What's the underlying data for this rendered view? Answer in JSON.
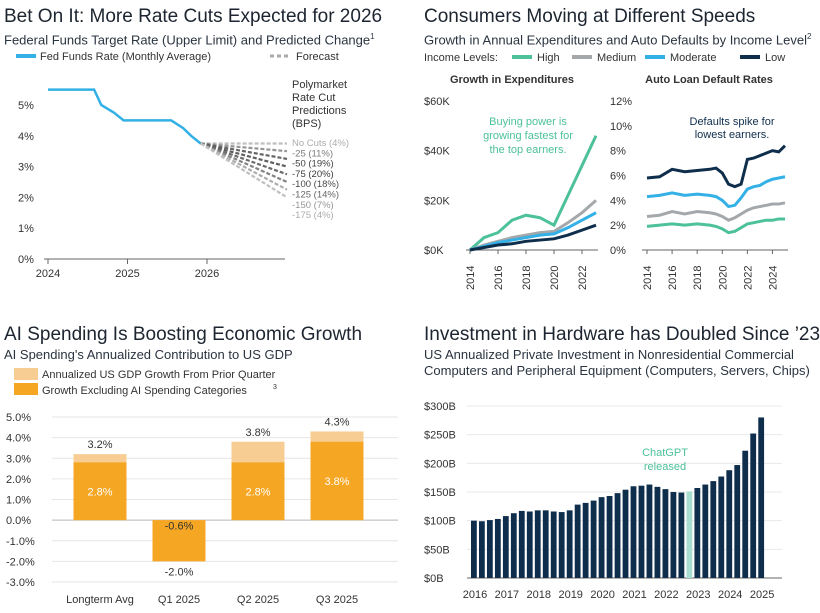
{
  "chart_data": [
    {
      "type": "line",
      "title": "Bet On It: More Rate Cuts Expected for 2026",
      "subtitle": "Federal Funds Target Rate (Upper Limit) and Predicted Change",
      "subtitle_note": "1",
      "legend": {
        "actual": "Fed Funds Rate (Monthly Average)",
        "forecast": "Forecast"
      },
      "yticks": [
        "5%",
        "4%",
        "3%",
        "2%",
        "1%",
        "0%"
      ],
      "xticks": [
        "2024",
        "2025",
        "2026"
      ],
      "ylim": [
        0,
        5.5
      ],
      "series": [
        {
          "name": "Fed Funds Rate (Monthly Average)",
          "x": [
            2024.0,
            2024.2,
            2024.58,
            2024.67,
            2024.83,
            2024.95,
            2025.2,
            2025.4,
            2025.55,
            2025.7,
            2025.8,
            2025.92
          ],
          "values": [
            5.5,
            5.5,
            5.5,
            5.0,
            4.75,
            4.5,
            4.5,
            4.5,
            4.5,
            4.25,
            4.0,
            3.75
          ]
        }
      ],
      "predictions_title": [
        "Polymarket",
        "Rate Cut",
        "Predictions",
        "(BPS)"
      ],
      "predictions": [
        {
          "label": "No Cuts (4%)",
          "bps": 0,
          "pct": 4
        },
        {
          "label": "-25 (11%)",
          "bps": -25,
          "pct": 11
        },
        {
          "label": "-50 (19%)",
          "bps": -50,
          "pct": 19
        },
        {
          "label": "-75 (20%)",
          "bps": -75,
          "pct": 20
        },
        {
          "label": "-100 (18%)",
          "bps": -100,
          "pct": 18
        },
        {
          "label": "-125 (14%)",
          "bps": -125,
          "pct": 14
        },
        {
          "label": "-150 (7%)",
          "bps": -150,
          "pct": 7
        },
        {
          "label": "-175 (4%)",
          "bps": -175,
          "pct": 4
        }
      ]
    },
    {
      "type": "line",
      "title": "Consumers Moving at Different Speeds",
      "subtitle": "Growth in Annual Expenditures and Auto Defaults by Income Level",
      "subtitle_note": "2",
      "legend_title": "Income Levels:",
      "legend": [
        "High",
        "Medium",
        "Moderate",
        "Low"
      ],
      "colors": {
        "High": "#4cc19a",
        "Medium": "#a5a8ab",
        "Moderate": "#33b1e6",
        "Low": "#0e2e4c"
      },
      "panels": [
        {
          "title": "Growth in Expenditures",
          "yticks": [
            "$60K",
            "$40K",
            "$20K",
            "$0K"
          ],
          "ylim": [
            0,
            60
          ],
          "xticks": [
            "2014",
            "2016",
            "2018",
            "2020",
            "2022"
          ],
          "annotation": [
            "Buying power is",
            "growing fastest for",
            "the top earners."
          ],
          "x": [
            2014,
            2015,
            2016,
            2017,
            2018,
            2019,
            2020,
            2021,
            2022,
            2023
          ],
          "series": [
            {
              "name": "High",
              "values": [
                0,
                5,
                7,
                12,
                14,
                13,
                10,
                22,
                34,
                46
              ]
            },
            {
              "name": "Medium",
              "values": [
                0,
                2,
                3.5,
                5,
                6,
                7,
                7.5,
                11,
                15,
                20
              ]
            },
            {
              "name": "Moderate",
              "values": [
                0,
                1.5,
                3,
                4,
                5,
                6,
                6.5,
                9,
                12,
                15
              ]
            },
            {
              "name": "Low",
              "values": [
                0,
                1,
                2,
                2.5,
                3.5,
                4,
                4.5,
                6,
                8,
                10
              ]
            }
          ]
        },
        {
          "title": "Auto Loan Default Rates",
          "yticks": [
            "12%",
            "10%",
            "8%",
            "6%",
            "4%",
            "2%",
            "0%"
          ],
          "ylim": [
            0,
            12
          ],
          "xticks": [
            "2014",
            "2016",
            "2018",
            "2020",
            "2022",
            "2024"
          ],
          "annotation": [
            "Defaults spike for",
            "lowest earners."
          ],
          "x": [
            2014,
            2015,
            2016,
            2017,
            2018,
            2019,
            2019.5,
            2020,
            2020.5,
            2021,
            2021.5,
            2022,
            2022.5,
            2023,
            2023.5,
            2024,
            2024.5,
            2025
          ],
          "series": [
            {
              "name": "Low",
              "values": [
                5.8,
                5.9,
                6.5,
                6.3,
                6.4,
                6.5,
                6.6,
                6.2,
                5.3,
                5.1,
                5.3,
                7.3,
                7.4,
                7.6,
                7.8,
                8.0,
                7.9,
                8.4
              ]
            },
            {
              "name": "Moderate",
              "values": [
                4.3,
                4.4,
                4.6,
                4.4,
                4.5,
                4.4,
                4.3,
                4.0,
                3.5,
                3.6,
                4.2,
                4.9,
                5.1,
                5.2,
                5.5,
                5.7,
                5.8,
                5.9
              ]
            },
            {
              "name": "Medium",
              "values": [
                2.7,
                2.8,
                3.1,
                2.9,
                3.1,
                3.0,
                2.9,
                2.7,
                2.4,
                2.6,
                2.9,
                3.2,
                3.4,
                3.5,
                3.6,
                3.7,
                3.7,
                3.8
              ]
            },
            {
              "name": "High",
              "values": [
                1.9,
                2.0,
                2.1,
                2.0,
                2.1,
                2.0,
                1.9,
                1.7,
                1.4,
                1.5,
                1.8,
                2.1,
                2.2,
                2.3,
                2.4,
                2.4,
                2.5,
                2.5
              ]
            }
          ]
        }
      ]
    },
    {
      "type": "bar",
      "title": "AI Spending Is Boosting Economic Growth",
      "subtitle": "AI Spending's Annualized Contribution to US GDP",
      "legend": [
        "Annualized US GDP Growth From Prior Quarter",
        "Growth Excluding AI Spending Categories"
      ],
      "legend_note": "3",
      "categories": [
        "Longterm Avg",
        "Q1 2025",
        "Q2 2025",
        "Q3 2025"
      ],
      "series": [
        {
          "name": "Annualized US GDP Growth From Prior Quarter",
          "values": [
            3.2,
            -0.6,
            3.8,
            4.3
          ],
          "labels": [
            "3.2%",
            "-0.6%",
            "3.8%",
            "4.3%"
          ]
        },
        {
          "name": "Growth Excluding AI Spending Categories",
          "values": [
            2.8,
            -2.0,
            2.8,
            3.8
          ],
          "labels": [
            "2.8%",
            "-2.0%",
            "2.8%",
            "3.8%"
          ]
        }
      ],
      "yticks": [
        "5.0%",
        "4.0%",
        "3.0%",
        "2.0%",
        "1.0%",
        "0.0%",
        "-1.0%",
        "-2.0%",
        "-3.0%"
      ],
      "ylim": [
        -3,
        5
      ]
    },
    {
      "type": "bar",
      "title": "Investment in Hardware has Doubled Since ’23",
      "subtitle": [
        "US Annualized Private Investment in Nonresidential Commercial",
        "Computers and Peripheral Equipment (Computers, Servers, Chips)"
      ],
      "yticks": [
        "$300B",
        "$250B",
        "$200B",
        "$150B",
        "$100B",
        "$50B",
        "$0B"
      ],
      "ylim": [
        0,
        300
      ],
      "xticks": [
        "2016",
        "2017",
        "2018",
        "2019",
        "2020",
        "2021",
        "2022",
        "2023",
        "2024",
        "2025"
      ],
      "annotation": [
        "ChatGPT",
        "released"
      ],
      "highlight_index": 27,
      "values": [
        100,
        99,
        101,
        103,
        108,
        113,
        117,
        116,
        118,
        118,
        116,
        115,
        118,
        128,
        131,
        135,
        141,
        143,
        148,
        154,
        160,
        161,
        163,
        159,
        155,
        150,
        149,
        151,
        157,
        163,
        169,
        177,
        188,
        197,
        222,
        252,
        280
      ]
    }
  ]
}
